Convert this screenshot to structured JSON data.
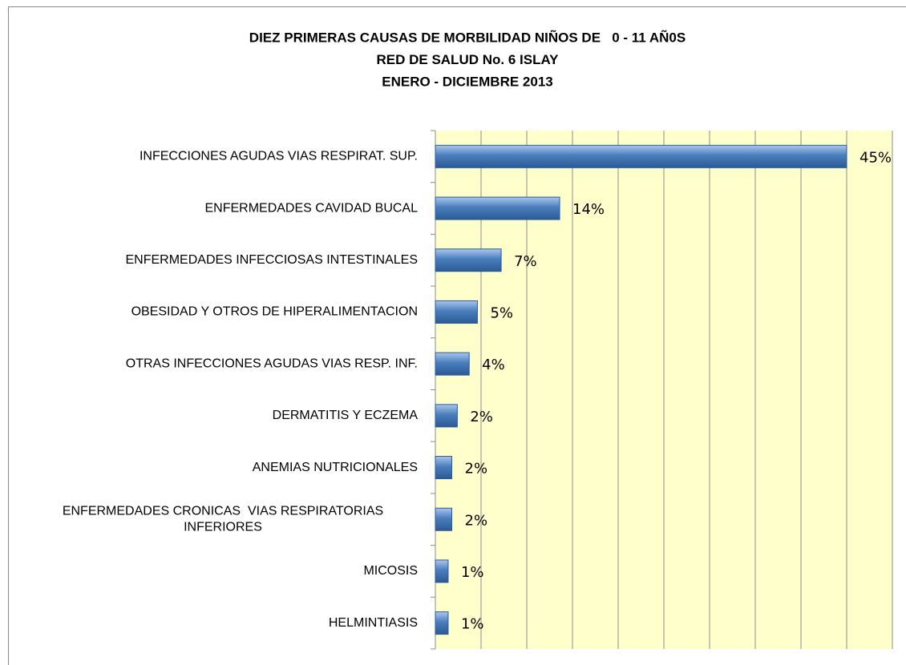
{
  "chart_data": {
    "type": "hbar",
    "title": [
      "DIEZ PRIMERAS CAUSAS DE MORBILIDAD NIÑOS DE   0 - 11 AÑ0S",
      "RED DE SALUD No. 6 ISLAY",
      "ENERO - DICIEMBRE 2013"
    ],
    "categories": [
      "INFECCIONES AGUDAS VIAS RESPIRAT. SUP.",
      "ENFERMEDADES CAVIDAD BUCAL",
      "ENFERMEDADES INFECCIOSAS INTESTINALES",
      "OBESIDAD Y OTROS DE HIPERALIMENTACION",
      "OTRAS INFECCIONES AGUDAS VIAS RESP. INF.",
      "DERMATITIS Y ECZEMA",
      "ANEMIAS NUTRICIONALES",
      "ENFERMEDADES CRONICAS  VIAS RESPIRATORIAS\nINFERIORES",
      "MICOSIS",
      "HELMINTIASIS"
    ],
    "values": [
      45,
      13.6,
      7.2,
      4.6,
      3.7,
      2.4,
      1.8,
      1.8,
      1.4,
      1.4
    ],
    "value_labels": [
      "45%",
      "14%",
      "7%",
      "5%",
      "4%",
      "2%",
      "2%",
      "2%",
      "1%",
      "1%"
    ],
    "color": "#4a7ebb",
    "xlim": [
      0,
      50
    ],
    "xticks": [
      0,
      5,
      10,
      15,
      20,
      25,
      30,
      35,
      40,
      45,
      50
    ],
    "grid": true
  }
}
